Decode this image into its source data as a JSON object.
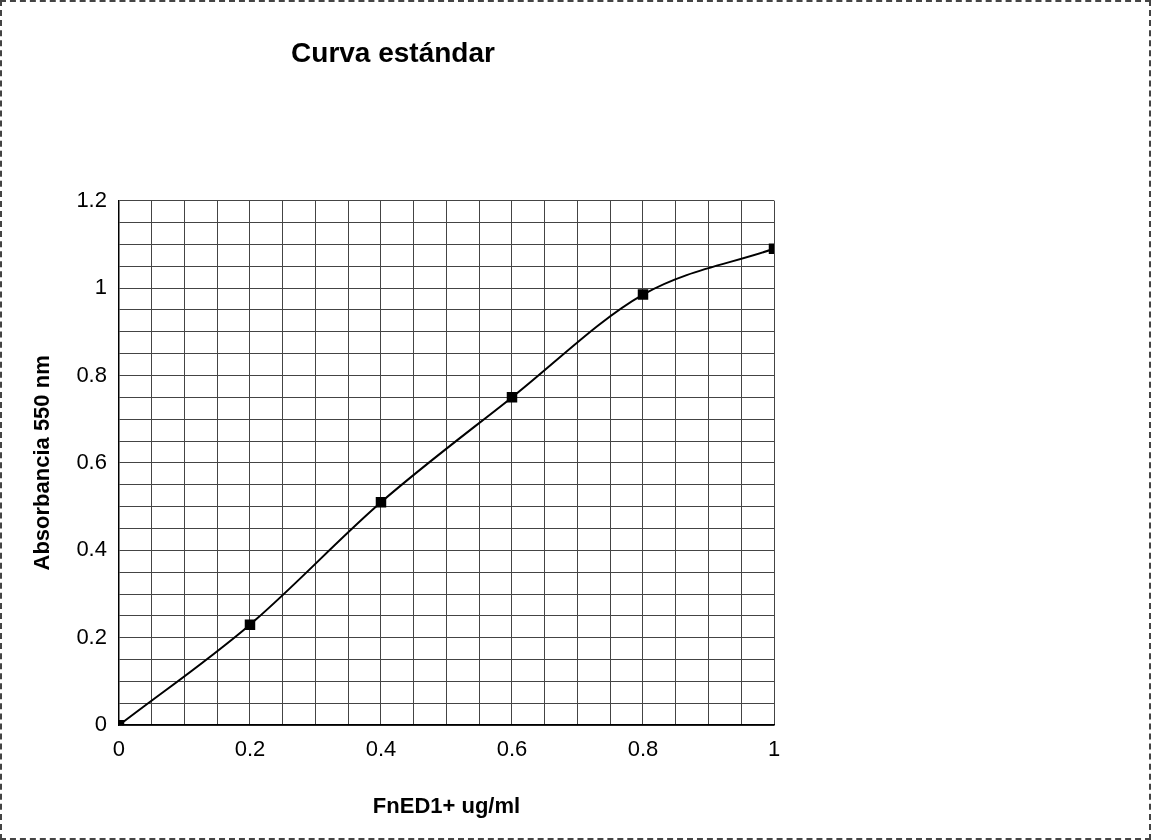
{
  "chart_data": {
    "type": "line",
    "title": "Curva estándar",
    "xlabel": "FnED1+ ug/ml",
    "ylabel": "Absorbancia 550 nm",
    "x": [
      0,
      0.2,
      0.4,
      0.6,
      0.8,
      1
    ],
    "series": [
      {
        "color": "#000000",
        "values": [
          0,
          0.23,
          0.51,
          0.75,
          0.985,
          1.09
        ]
      }
    ],
    "xlim": [
      0,
      1
    ],
    "xticks": [
      0,
      {
        "value": 0.05,
        "label": null
      },
      0.2,
      {
        "value": 0.1,
        "label": null
      },
      {
        "value": 0.15,
        "label": null
      },
      {
        "value": 0.25,
        "label": null
      },
      {
        "value": 0.3,
        "label": null
      },
      {
        "value": 0.35,
        "label": null
      },
      0.4,
      {
        "value": 0.45,
        "label": null
      },
      {
        "value": 0.5,
        "label": null
      },
      {
        "value": 0.55,
        "label": null
      },
      0.6,
      {
        "value": 0.65,
        "label": null
      },
      {
        "value": 0.7,
        "label": null
      },
      {
        "value": 0.75,
        "label": null
      },
      0.8,
      {
        "value": 0.85,
        "label": null
      },
      {
        "value": 0.9,
        "label": null
      },
      {
        "value": 0.95,
        "label": null
      },
      1
    ],
    "ylim": [
      0,
      1.2
    ],
    "yticks": [
      0,
      {
        "value": 0.05,
        "label": null
      },
      {
        "value": 0.1,
        "label": null
      },
      {
        "value": 0.15,
        "label": null
      },
      0.2,
      {
        "value": 0.25,
        "label": null
      },
      {
        "value": 0.3,
        "label": null
      },
      {
        "value": 0.35,
        "label": null
      },
      0.4,
      {
        "value": 0.45,
        "label": null
      },
      {
        "value": 0.5,
        "label": null
      },
      {
        "value": 0.55,
        "label": null
      },
      0.6,
      {
        "value": 0.65,
        "label": null
      },
      {
        "value": 0.7,
        "label": null
      },
      {
        "value": 0.75,
        "label": null
      },
      0.8,
      {
        "value": 0.85,
        "label": null
      },
      {
        "value": 0.9,
        "label": null
      },
      {
        "value": 0.95,
        "label": null
      },
      1,
      {
        "value": 1.05,
        "label": null
      },
      {
        "value": 1.1,
        "label": null
      },
      {
        "value": 1.15,
        "label": null
      },
      1.2
    ],
    "grid": true,
    "legend": false,
    "marker": "square",
    "line_style": "solid"
  }
}
